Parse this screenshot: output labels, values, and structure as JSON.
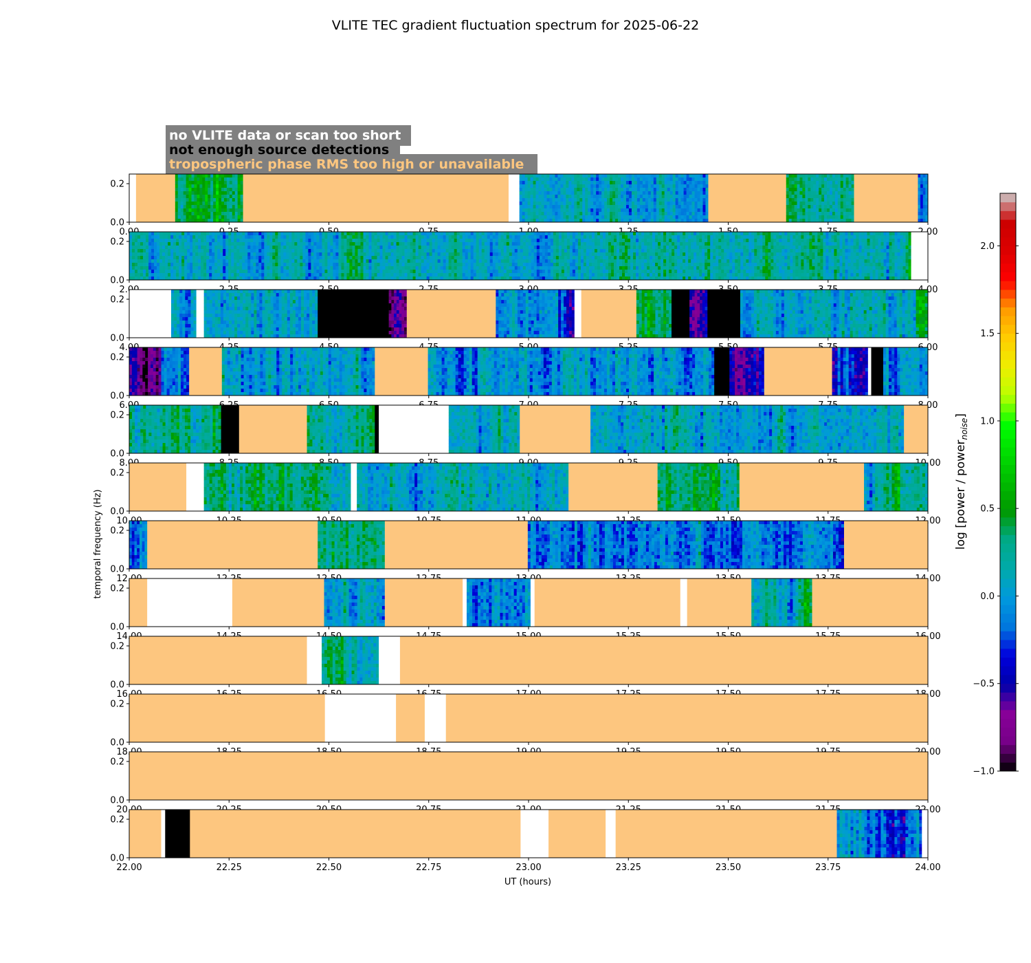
{
  "chart_data": {
    "type": "heatmap",
    "title": "VLITE TEC gradient fluctuation spectrum for 2025-06-22",
    "ylabel": "temporal frequency (Hz)",
    "xlabel": "UT (hours)",
    "ylim": [
      0,
      0.25
    ],
    "yticks": [
      "0.0",
      "0.2"
    ],
    "yticks_values": [
      0.0,
      0.2
    ],
    "legend": [
      {
        "label": "no VLITE data or scan too short",
        "color": "#ffffff"
      },
      {
        "label": "not enough source detections",
        "color": "#000000"
      },
      {
        "label": "tropospheric phase RMS too high or unavailable",
        "color": "#fdc67f"
      }
    ],
    "colorbar": {
      "label": "log [power / power",
      "label_sub": "noise",
      "label_end": "]",
      "range": [
        -1.0,
        2.3
      ],
      "ticks": [
        -1.0,
        -0.5,
        0.0,
        0.5,
        1.0,
        1.5,
        2.0
      ],
      "tick_labels": [
        "−1.0",
        "−0.5",
        "0.0",
        "0.5",
        "1.0",
        "1.5",
        "2.0"
      ],
      "colormap": "nipy_spectral"
    },
    "panels": [
      {
        "range": [
          0,
          2
        ],
        "tick_labels": [
          "0.00",
          "0.25",
          "0.50",
          "0.75",
          "1.00",
          "1.25",
          "1.50",
          "1.75",
          "2.00"
        ],
        "segments": [
          {
            "s": 0.0,
            "e": 0.017,
            "k": "white"
          },
          {
            "s": 0.017,
            "e": 0.115,
            "k": "flag"
          },
          {
            "s": 0.115,
            "e": 0.285,
            "k": "data",
            "m": 0.35
          },
          {
            "s": 0.285,
            "e": 0.95,
            "k": "flag"
          },
          {
            "s": 0.95,
            "e": 0.977,
            "k": "white"
          },
          {
            "s": 0.977,
            "e": 1.45,
            "k": "data",
            "m": 0.05
          },
          {
            "s": 1.45,
            "e": 1.645,
            "k": "flag"
          },
          {
            "s": 1.645,
            "e": 1.815,
            "k": "data",
            "m": 0.3
          },
          {
            "s": 1.815,
            "e": 1.975,
            "k": "flag"
          },
          {
            "s": 1.975,
            "e": 2.0,
            "k": "data",
            "m": 0.1
          }
        ]
      },
      {
        "range": [
          2,
          4
        ],
        "tick_labels": [
          "2.00",
          "2.25",
          "2.50",
          "2.75",
          "3.00",
          "3.25",
          "3.50",
          "3.75",
          "4.00"
        ],
        "segments": [
          {
            "s": 2.0,
            "e": 3.958,
            "k": "data",
            "m": 0.15
          },
          {
            "s": 3.958,
            "e": 4.0,
            "k": "white"
          }
        ]
      },
      {
        "range": [
          4,
          6
        ],
        "tick_labels": [
          "4.00",
          "4.25",
          "4.50",
          "4.75",
          "5.00",
          "5.25",
          "5.50",
          "5.75",
          "6.00"
        ],
        "segments": [
          {
            "s": 4.0,
            "e": 4.105,
            "k": "white"
          },
          {
            "s": 4.105,
            "e": 4.168,
            "k": "data",
            "m": 0.0
          },
          {
            "s": 4.168,
            "e": 4.187,
            "k": "white"
          },
          {
            "s": 4.187,
            "e": 4.472,
            "k": "data",
            "m": 0.05
          },
          {
            "s": 4.472,
            "e": 4.65,
            "k": "black"
          },
          {
            "s": 4.65,
            "e": 4.695,
            "k": "data",
            "m": -0.6
          },
          {
            "s": 4.695,
            "e": 4.918,
            "k": "flag"
          },
          {
            "s": 4.918,
            "e": 5.115,
            "k": "data",
            "m": -0.15
          },
          {
            "s": 5.115,
            "e": 5.132,
            "k": "white"
          },
          {
            "s": 5.132,
            "e": 5.27,
            "k": "flag"
          },
          {
            "s": 5.27,
            "e": 5.358,
            "k": "data",
            "m": 0.35
          },
          {
            "s": 5.358,
            "e": 5.403,
            "k": "black"
          },
          {
            "s": 5.403,
            "e": 5.448,
            "k": "data",
            "m": -0.4
          },
          {
            "s": 5.448,
            "e": 5.53,
            "k": "black"
          },
          {
            "s": 5.53,
            "e": 5.97,
            "k": "data",
            "m": 0.1
          },
          {
            "s": 5.97,
            "e": 6.0,
            "k": "data",
            "m": 0.5
          }
        ]
      },
      {
        "range": [
          6,
          8
        ],
        "tick_labels": [
          "6.00",
          "6.25",
          "6.50",
          "6.75",
          "7.00",
          "7.25",
          "7.50",
          "7.75",
          "8.00"
        ],
        "segments": [
          {
            "s": 6.0,
            "e": 6.08,
            "k": "data",
            "m": -0.65
          },
          {
            "s": 6.08,
            "e": 6.15,
            "k": "data",
            "m": -0.1
          },
          {
            "s": 6.15,
            "e": 6.232,
            "k": "flag"
          },
          {
            "s": 6.232,
            "e": 6.615,
            "k": "data",
            "m": 0.05
          },
          {
            "s": 6.615,
            "e": 6.748,
            "k": "flag"
          },
          {
            "s": 6.748,
            "e": 7.465,
            "k": "data",
            "m": 0.0
          },
          {
            "s": 7.465,
            "e": 7.503,
            "k": "black"
          },
          {
            "s": 7.503,
            "e": 7.59,
            "k": "data",
            "m": -0.5
          },
          {
            "s": 7.59,
            "e": 7.76,
            "k": "flag"
          },
          {
            "s": 7.76,
            "e": 7.85,
            "k": "data",
            "m": -0.35
          },
          {
            "s": 7.85,
            "e": 7.858,
            "k": "white"
          },
          {
            "s": 7.858,
            "e": 7.888,
            "k": "black"
          },
          {
            "s": 7.888,
            "e": 8.0,
            "k": "data",
            "m": -0.05
          }
        ]
      },
      {
        "range": [
          8,
          10
        ],
        "tick_labels": [
          "8.00",
          "8.25",
          "8.50",
          "8.75",
          "9.00",
          "9.25",
          "9.50",
          "9.75",
          "10.00"
        ],
        "segments": [
          {
            "s": 8.0,
            "e": 8.23,
            "k": "data",
            "m": 0.2
          },
          {
            "s": 8.23,
            "e": 8.275,
            "k": "black"
          },
          {
            "s": 8.275,
            "e": 8.445,
            "k": "flag"
          },
          {
            "s": 8.445,
            "e": 8.615,
            "k": "data",
            "m": 0.2
          },
          {
            "s": 8.615,
            "e": 8.625,
            "k": "black"
          },
          {
            "s": 8.625,
            "e": 8.8,
            "k": "white"
          },
          {
            "s": 8.8,
            "e": 8.978,
            "k": "data",
            "m": 0.1
          },
          {
            "s": 8.978,
            "e": 9.155,
            "k": "flag"
          },
          {
            "s": 9.155,
            "e": 9.94,
            "k": "data",
            "m": 0.05
          },
          {
            "s": 9.94,
            "e": 10.0,
            "k": "flag"
          }
        ]
      },
      {
        "range": [
          10,
          12
        ],
        "tick_labels": [
          "10.00",
          "10.25",
          "10.50",
          "10.75",
          "11.00",
          "11.25",
          "11.50",
          "11.75",
          "12.00"
        ],
        "segments": [
          {
            "s": 10.0,
            "e": 10.143,
            "k": "flag"
          },
          {
            "s": 10.143,
            "e": 10.187,
            "k": "white"
          },
          {
            "s": 10.187,
            "e": 10.555,
            "k": "data",
            "m": 0.3
          },
          {
            "s": 10.555,
            "e": 10.57,
            "k": "white"
          },
          {
            "s": 10.57,
            "e": 11.1,
            "k": "data",
            "m": 0.1
          },
          {
            "s": 11.1,
            "e": 11.323,
            "k": "flag"
          },
          {
            "s": 11.323,
            "e": 11.528,
            "k": "data",
            "m": 0.35
          },
          {
            "s": 11.528,
            "e": 11.84,
            "k": "flag"
          },
          {
            "s": 11.84,
            "e": 12.0,
            "k": "data",
            "m": 0.2
          }
        ]
      },
      {
        "range": [
          12,
          14
        ],
        "tick_labels": [
          "12.00",
          "12.25",
          "12.50",
          "12.75",
          "13.00",
          "13.25",
          "13.50",
          "13.75",
          "14.00"
        ],
        "segments": [
          {
            "s": 12.0,
            "e": 12.045,
            "k": "data",
            "m": -0.1
          },
          {
            "s": 12.045,
            "e": 12.472,
            "k": "flag"
          },
          {
            "s": 12.472,
            "e": 12.64,
            "k": "data",
            "m": 0.3
          },
          {
            "s": 12.64,
            "e": 12.998,
            "k": "flag"
          },
          {
            "s": 12.998,
            "e": 13.79,
            "k": "data",
            "m": -0.1
          },
          {
            "s": 13.79,
            "e": 14.0,
            "k": "flag"
          }
        ]
      },
      {
        "range": [
          14,
          16
        ],
        "tick_labels": [
          "14.00",
          "14.25",
          "14.50",
          "14.75",
          "15.00",
          "15.25",
          "15.50",
          "15.75",
          "16.00"
        ],
        "segments": [
          {
            "s": 14.0,
            "e": 14.045,
            "k": "flag"
          },
          {
            "s": 14.045,
            "e": 14.258,
            "k": "white"
          },
          {
            "s": 14.258,
            "e": 14.488,
            "k": "flag"
          },
          {
            "s": 14.488,
            "e": 14.64,
            "k": "data",
            "m": 0.1
          },
          {
            "s": 14.64,
            "e": 14.835,
            "k": "flag"
          },
          {
            "s": 14.835,
            "e": 14.845,
            "k": "white"
          },
          {
            "s": 14.845,
            "e": 15.005,
            "k": "data",
            "m": -0.05
          },
          {
            "s": 15.005,
            "e": 15.015,
            "k": "white"
          },
          {
            "s": 15.015,
            "e": 15.38,
            "k": "flag"
          },
          {
            "s": 15.38,
            "e": 15.397,
            "k": "white"
          },
          {
            "s": 15.397,
            "e": 15.558,
            "k": "flag"
          },
          {
            "s": 15.558,
            "e": 15.71,
            "k": "data",
            "m": 0.2
          },
          {
            "s": 15.71,
            "e": 16.0,
            "k": "flag"
          }
        ]
      },
      {
        "range": [
          16,
          18
        ],
        "tick_labels": [
          "16.00",
          "16.25",
          "16.50",
          "16.75",
          "17.00",
          "17.25",
          "17.50",
          "17.75",
          "18.00"
        ],
        "segments": [
          {
            "s": 16.0,
            "e": 16.445,
            "k": "flag"
          },
          {
            "s": 16.445,
            "e": 16.482,
            "k": "white"
          },
          {
            "s": 16.482,
            "e": 16.625,
            "k": "data",
            "m": 0.3
          },
          {
            "s": 16.625,
            "e": 16.678,
            "k": "white"
          },
          {
            "s": 16.678,
            "e": 18.0,
            "k": "flag"
          }
        ]
      },
      {
        "range": [
          18,
          20
        ],
        "tick_labels": [
          "18.00",
          "18.25",
          "18.50",
          "18.75",
          "19.00",
          "19.25",
          "19.50",
          "19.75",
          "20.00"
        ],
        "segments": [
          {
            "s": 18.0,
            "e": 18.49,
            "k": "flag"
          },
          {
            "s": 18.49,
            "e": 18.668,
            "k": "white"
          },
          {
            "s": 18.668,
            "e": 18.74,
            "k": "flag"
          },
          {
            "s": 18.74,
            "e": 18.793,
            "k": "white"
          },
          {
            "s": 18.793,
            "e": 20.0,
            "k": "flag"
          }
        ]
      },
      {
        "range": [
          20,
          22
        ],
        "tick_labels": [
          "20.00",
          "20.25",
          "20.50",
          "20.75",
          "21.00",
          "21.25",
          "21.50",
          "21.75",
          "22.00"
        ],
        "segments": [
          {
            "s": 20.0,
            "e": 22.0,
            "k": "flag"
          }
        ]
      },
      {
        "range": [
          22,
          24
        ],
        "tick_labels": [
          "22.00",
          "22.25",
          "22.50",
          "22.75",
          "23.00",
          "23.25",
          "23.50",
          "23.75",
          "24.00"
        ],
        "segments": [
          {
            "s": 22.0,
            "e": 22.08,
            "k": "flag"
          },
          {
            "s": 22.08,
            "e": 22.09,
            "k": "white"
          },
          {
            "s": 22.09,
            "e": 22.152,
            "k": "black"
          },
          {
            "s": 22.152,
            "e": 22.98,
            "k": "flag"
          },
          {
            "s": 22.98,
            "e": 23.05,
            "k": "white"
          },
          {
            "s": 23.05,
            "e": 23.193,
            "k": "flag"
          },
          {
            "s": 23.193,
            "e": 23.218,
            "k": "white"
          },
          {
            "s": 23.218,
            "e": 23.772,
            "k": "flag"
          },
          {
            "s": 23.772,
            "e": 23.985,
            "k": "data",
            "m": -0.1
          },
          {
            "s": 23.985,
            "e": 24.0,
            "k": "white"
          }
        ]
      }
    ]
  },
  "colors": {
    "flag": "#fdc67f",
    "nodata": "#ffffff",
    "nodetect": "#000000",
    "legend_box": "#808080"
  }
}
